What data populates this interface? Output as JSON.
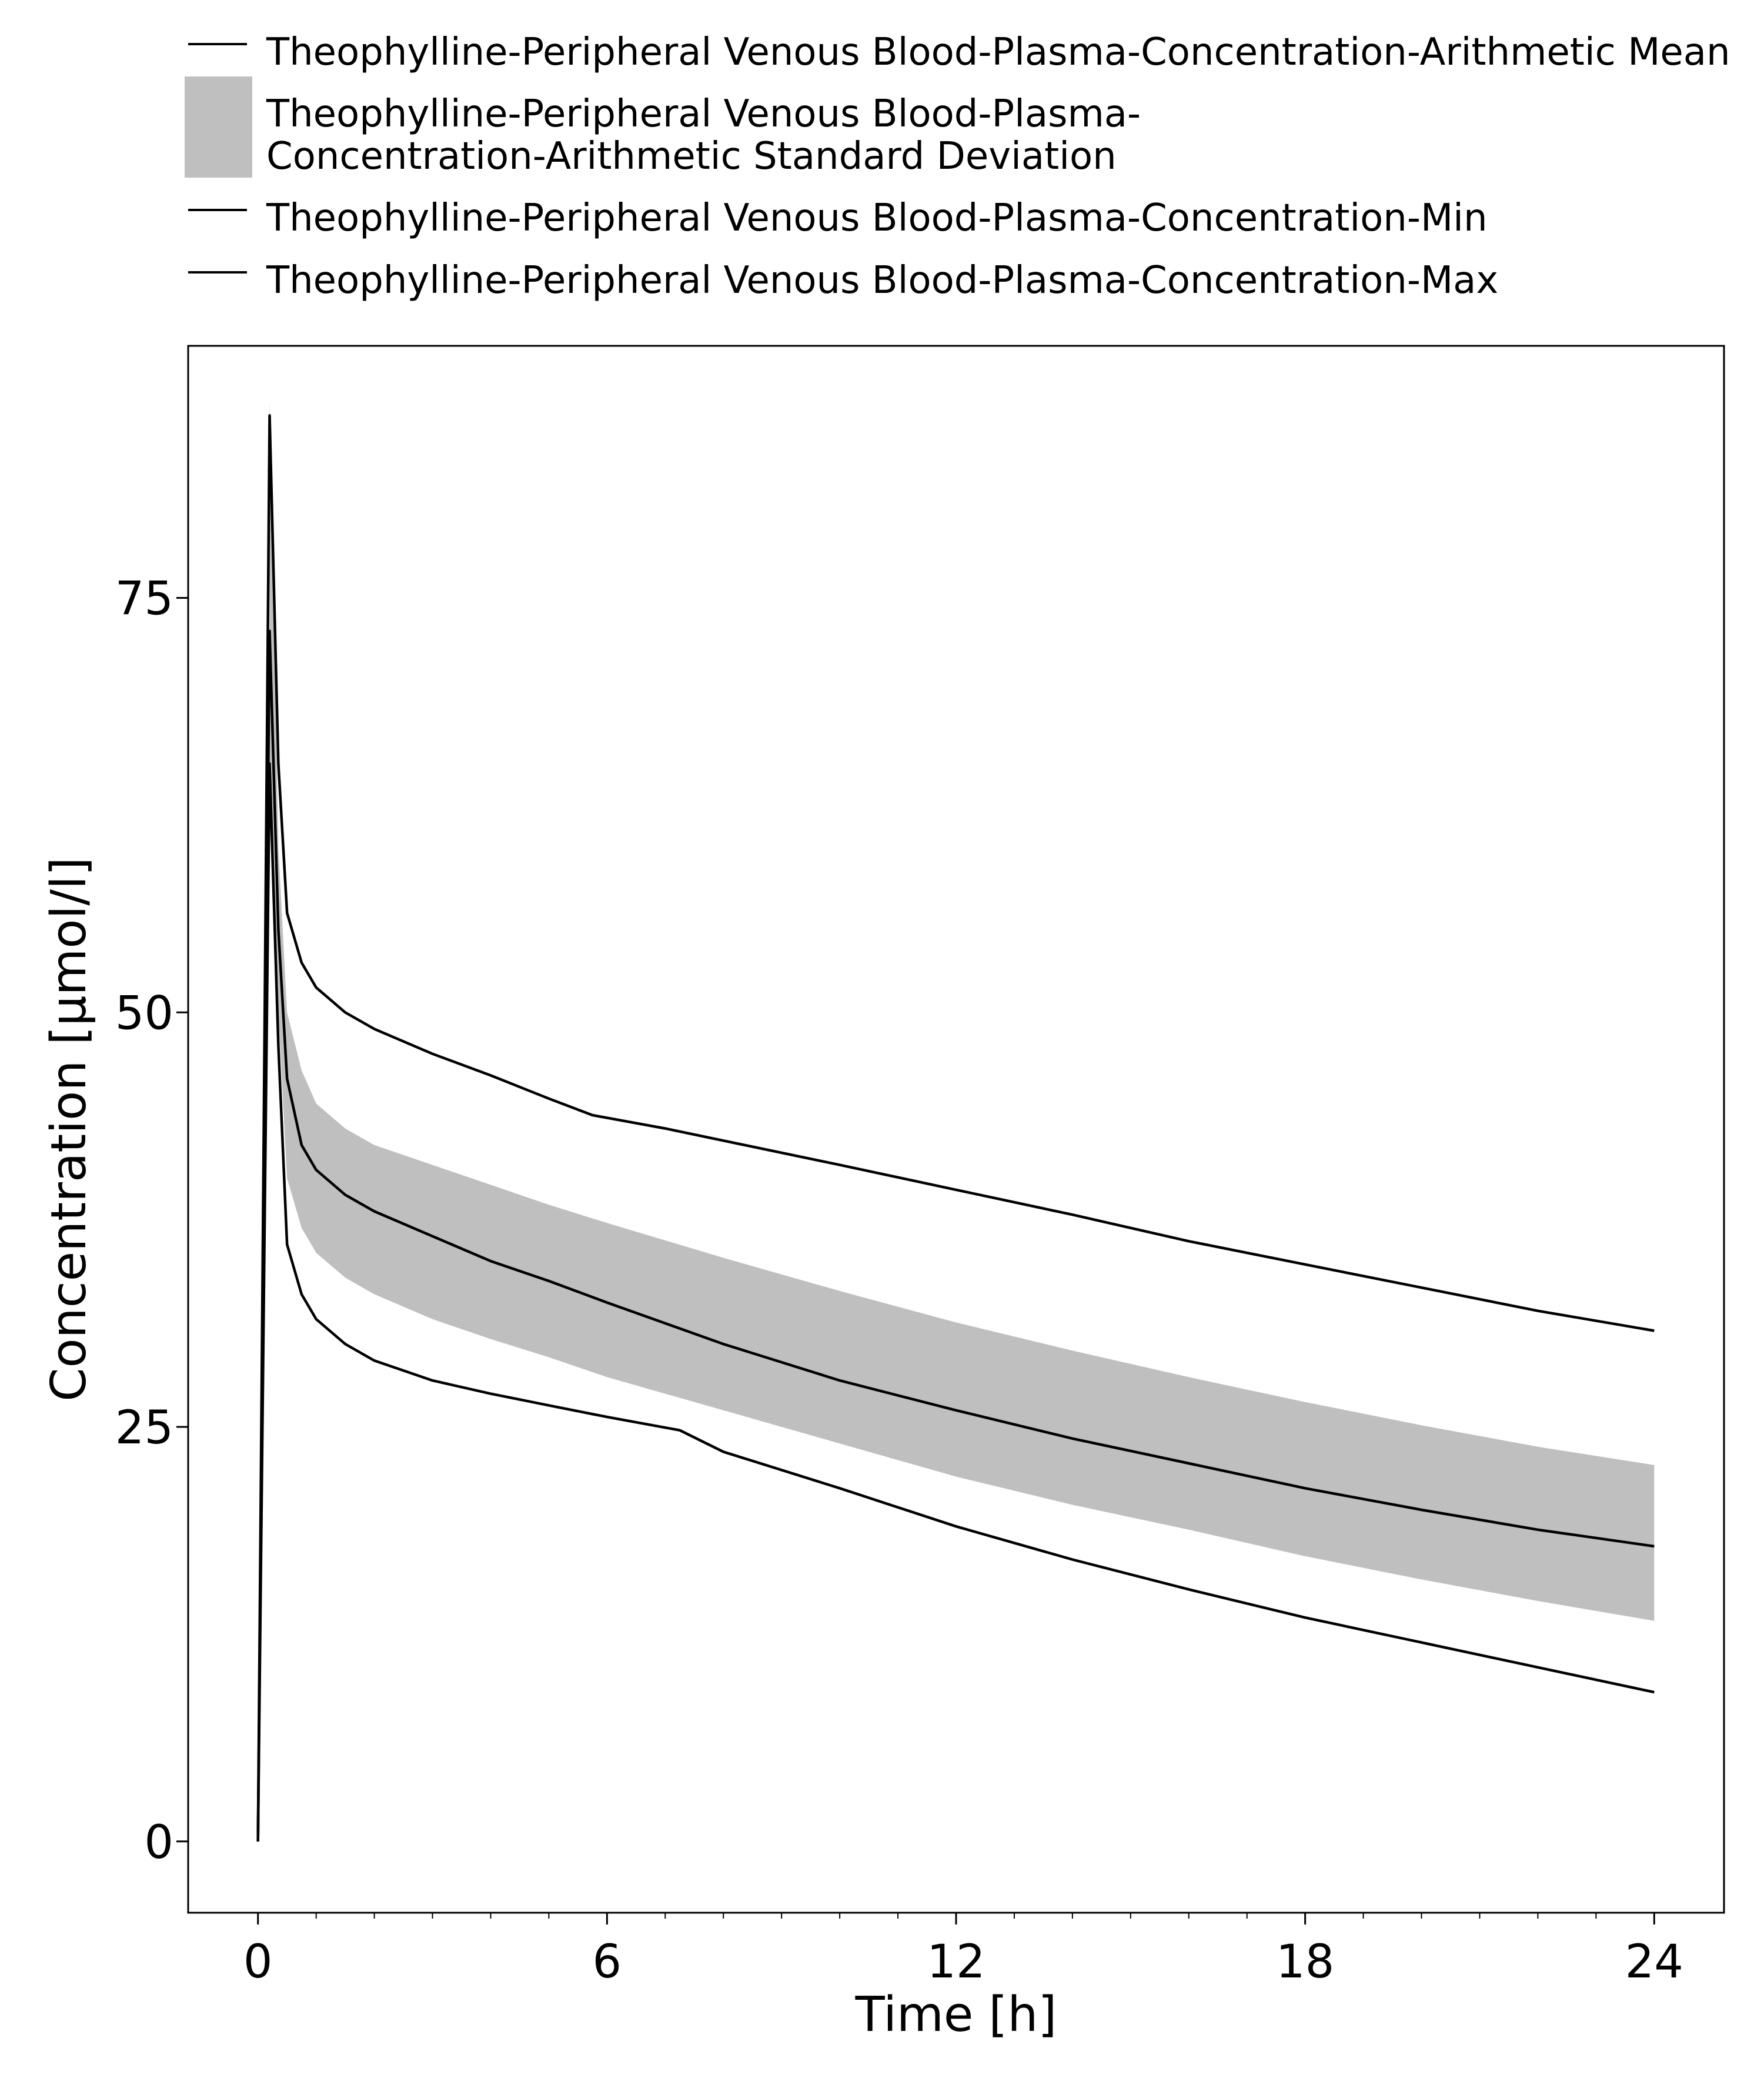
{
  "chart_data": {
    "type": "line",
    "title": "",
    "xlabel": "Time [h]",
    "ylabel": "Concentration [µmol/l]",
    "xlim": [
      -1.2,
      25.2
    ],
    "ylim": [
      -4.3,
      90.2
    ],
    "x_ticks": [
      0,
      6,
      12,
      18,
      24
    ],
    "x_tick_labels": [
      "0",
      "6",
      "12",
      "18",
      "24"
    ],
    "x_minor_ticks": [
      1,
      2,
      3,
      4,
      5,
      7,
      8,
      9,
      10,
      11,
      13,
      14,
      15,
      16,
      17,
      19,
      20,
      21,
      22,
      23
    ],
    "y_ticks": [
      0,
      25,
      50,
      75
    ],
    "y_tick_labels": [
      "0",
      "25",
      "50",
      "75"
    ],
    "grid": false,
    "legend_position": "top",
    "legend": [
      {
        "kind": "line",
        "lines": [
          "Theophylline-Peripheral Venous Blood-Plasma-Concentration-Arithmetic Mean"
        ]
      },
      {
        "kind": "band",
        "lines": [
          "Theophylline-Peripheral Venous Blood-Plasma-",
          "Concentration-Arithmetic Standard Deviation"
        ]
      },
      {
        "kind": "line",
        "lines": [
          "Theophylline-Peripheral Venous Blood-Plasma-Concentration-Min"
        ]
      },
      {
        "kind": "line",
        "lines": [
          "Theophylline-Peripheral Venous Blood-Plasma-Concentration-Max"
        ]
      }
    ],
    "colors": {
      "line": "#000000",
      "band": "#bfbfbf",
      "background": "#ffffff"
    },
    "series": [
      {
        "name": "Theophylline-Peripheral Venous Blood-Plasma-Concentration-Arithmetic Mean",
        "kind": "line",
        "x": [
          0,
          0.2,
          0.35,
          0.5,
          0.75,
          1,
          1.5,
          2,
          3,
          4,
          5,
          6,
          8,
          10,
          12,
          14,
          16,
          18,
          20,
          22,
          24
        ],
        "y": [
          0,
          73,
          55,
          46,
          42,
          40.5,
          39,
          38,
          36.5,
          35,
          33.8,
          32.5,
          30,
          27.8,
          26,
          24.3,
          22.8,
          21.3,
          20,
          18.8,
          17.8
        ]
      },
      {
        "name": "Theophylline-Peripheral Venous Blood-Plasma-Concentration-Arithmetic Standard Deviation",
        "kind": "band",
        "x": [
          0.2,
          0.35,
          0.5,
          0.75,
          1,
          1.5,
          2,
          3,
          4,
          5,
          6,
          8,
          10,
          12,
          14,
          16,
          18,
          20,
          22,
          24
        ],
        "lower": [
          65,
          50,
          40,
          37,
          35.5,
          34,
          33,
          31.5,
          30.3,
          29.2,
          28,
          26,
          24,
          22,
          20.3,
          18.8,
          17.2,
          15.8,
          14.5,
          13.3
        ],
        "upper": [
          87,
          60,
          50,
          46.5,
          44.5,
          43,
          42,
          40.8,
          39.6,
          38.4,
          37.3,
          35.2,
          33.2,
          31.3,
          29.6,
          28,
          26.5,
          25.1,
          23.8,
          22.7
        ]
      },
      {
        "name": "Theophylline-Peripheral Venous Blood-Plasma-Concentration-Min",
        "kind": "line",
        "x": [
          0,
          0.2,
          0.35,
          0.5,
          0.75,
          1,
          1.5,
          2,
          3,
          4,
          5,
          6,
          7.25,
          8,
          10,
          12,
          14,
          16,
          18,
          20,
          22,
          24
        ],
        "y": [
          0,
          65,
          48,
          36,
          33,
          31.5,
          30,
          29,
          27.8,
          27,
          26.3,
          25.6,
          24.8,
          23.5,
          21.3,
          19,
          17,
          15.2,
          13.5,
          12,
          10.5,
          9
        ]
      },
      {
        "name": "Theophylline-Peripheral Venous Blood-Plasma-Concentration-Max",
        "kind": "line",
        "x": [
          0,
          0.2,
          0.35,
          0.5,
          0.75,
          1,
          1.5,
          2,
          3,
          4,
          5,
          5.75,
          7,
          10,
          12,
          14,
          16,
          18,
          20,
          22,
          24
        ],
        "y": [
          0,
          86,
          65,
          56,
          53,
          51.5,
          50,
          49,
          47.5,
          46.2,
          44.8,
          43.8,
          43,
          40.8,
          39.3,
          37.8,
          36.2,
          34.8,
          33.4,
          32,
          30.8
        ]
      }
    ]
  }
}
